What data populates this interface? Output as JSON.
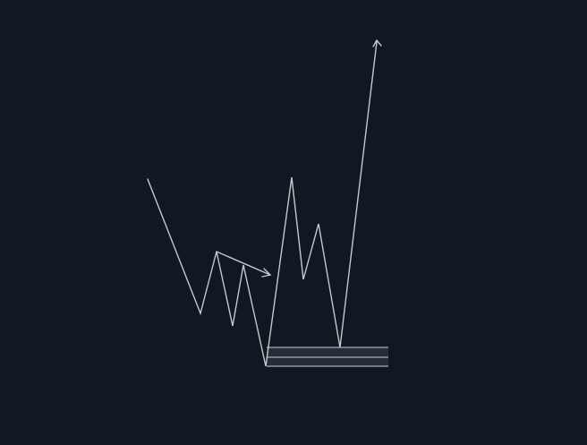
{
  "colors": {
    "background": "#121821",
    "line": "#c4c8cf",
    "zone_fill": "#2a313b",
    "zone_stroke": "#a9aeb6"
  },
  "diagram": {
    "elements": [
      "price-path-line",
      "trendline-arrow",
      "support-zone",
      "breakout-arrow"
    ]
  }
}
